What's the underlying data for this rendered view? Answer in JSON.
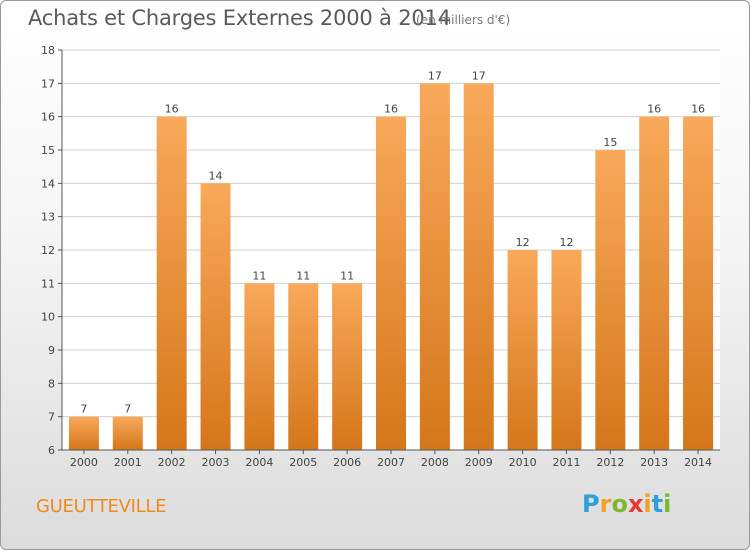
{
  "title": "Achats et Charges Externes 2000 à 2014",
  "subtitle": "(en milliers d'€)",
  "commune": "GUEUTTEVILLE",
  "brand": {
    "text": "Proxiti",
    "letters": [
      {
        "ch": "P",
        "color": "#2e9fd8"
      },
      {
        "ch": "r",
        "color": "#f0a023"
      },
      {
        "ch": "o",
        "color": "#7cb82f"
      },
      {
        "ch": "x",
        "color": "#e8392e"
      },
      {
        "ch": "i",
        "color": "#f0a023"
      },
      {
        "ch": "t",
        "color": "#2e9fd8"
      },
      {
        "ch": "i",
        "color": "#7cb82f"
      }
    ]
  },
  "colors": {
    "bar_top": "#f8a95a",
    "bar_bottom": "#d5761a",
    "grid": "#d0d0d0",
    "axis": "#555555",
    "accent": "#f08a1c"
  },
  "chart_data": {
    "type": "bar",
    "categories": [
      "2000",
      "2001",
      "2002",
      "2003",
      "2004",
      "2005",
      "2006",
      "2007",
      "2008",
      "2009",
      "2010",
      "2011",
      "2012",
      "2013",
      "2014"
    ],
    "values": [
      7,
      7,
      16,
      14,
      11,
      11,
      11,
      16,
      17,
      17,
      12,
      12,
      15,
      16,
      16
    ],
    "ylim": [
      6,
      18
    ],
    "yticks": [
      6,
      7,
      8,
      9,
      10,
      11,
      12,
      13,
      14,
      15,
      16,
      17,
      18
    ],
    "grid": true
  }
}
